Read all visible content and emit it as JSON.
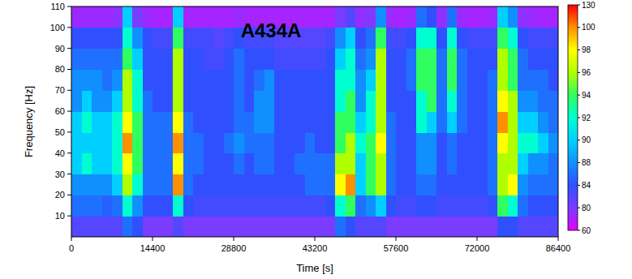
{
  "chart_data": {
    "type": "heatmap",
    "title": "A434A",
    "x_label": "Time [s]",
    "y_label": "Frequency [Hz]",
    "xlim": [
      0,
      86400
    ],
    "xticks": [
      0,
      14400,
      28800,
      43200,
      57600,
      72000,
      86400
    ],
    "ylim": [
      0,
      110
    ],
    "yticks": [
      10,
      20,
      30,
      40,
      50,
      60,
      70,
      80,
      90,
      100,
      110
    ],
    "x_bins": [
      0,
      1800,
      3600,
      5400,
      7200,
      9000,
      10800,
      12600,
      14400,
      16200,
      18000,
      19800,
      21600,
      23400,
      25200,
      27000,
      28800,
      30600,
      32400,
      34200,
      36000,
      37800,
      39600,
      41400,
      43200,
      45000,
      46800,
      48600,
      50400,
      52200,
      54000,
      55800,
      57600,
      59400,
      61200,
      63000,
      64800,
      66600,
      68400,
      70200,
      72000,
      73800,
      75600,
      77400,
      79200,
      81000,
      82800,
      84600,
      86400
    ],
    "y_bins": [
      0,
      10,
      20,
      30,
      40,
      50,
      60,
      70,
      80,
      90,
      100,
      110
    ],
    "cells": [
      [
        82,
        86,
        88,
        90,
        90,
        90,
        88,
        88,
        86,
        84,
        74
      ],
      [
        82,
        86,
        88,
        92,
        90,
        92,
        90,
        88,
        86,
        84,
        74
      ],
      [
        82,
        86,
        88,
        90,
        90,
        90,
        88,
        88,
        86,
        84,
        74
      ],
      [
        82,
        85,
        88,
        90,
        90,
        90,
        88,
        86,
        86,
        84,
        74
      ],
      [
        82,
        86,
        90,
        92,
        92,
        92,
        90,
        88,
        86,
        84,
        76
      ],
      [
        86,
        92,
        96,
        98,
        100,
        98,
        96,
        96,
        94,
        92,
        90
      ],
      [
        84,
        88,
        92,
        94,
        94,
        94,
        92,
        92,
        90,
        88,
        80
      ],
      [
        80,
        84,
        86,
        86,
        86,
        86,
        86,
        84,
        84,
        84,
        74
      ],
      [
        80,
        84,
        86,
        86,
        86,
        86,
        84,
        84,
        84,
        83,
        72
      ],
      [
        80,
        84,
        86,
        86,
        86,
        86,
        84,
        84,
        84,
        83,
        72
      ],
      [
        82,
        92,
        100,
        98,
        100,
        98,
        96,
        96,
        96,
        94,
        90
      ],
      [
        80,
        84,
        86,
        86,
        86,
        86,
        84,
        84,
        84,
        83,
        72
      ],
      [
        80,
        83,
        84,
        86,
        86,
        84,
        84,
        84,
        84,
        83,
        72
      ],
      [
        80,
        83,
        84,
        84,
        84,
        84,
        84,
        84,
        83,
        83,
        72
      ],
      [
        80,
        83,
        84,
        84,
        84,
        84,
        84,
        84,
        83,
        82,
        72
      ],
      [
        80,
        83,
        84,
        84,
        86,
        84,
        84,
        84,
        84,
        83,
        72
      ],
      [
        80,
        83,
        84,
        86,
        88,
        86,
        86,
        86,
        86,
        84,
        74
      ],
      [
        80,
        83,
        84,
        84,
        86,
        86,
        84,
        84,
        84,
        83,
        72
      ],
      [
        80,
        83,
        84,
        86,
        86,
        88,
        88,
        86,
        84,
        83,
        72
      ],
      [
        80,
        83,
        84,
        86,
        86,
        88,
        88,
        88,
        84,
        83,
        72
      ],
      [
        80,
        83,
        84,
        84,
        84,
        84,
        84,
        84,
        83,
        82,
        72
      ],
      [
        80,
        83,
        84,
        84,
        84,
        84,
        84,
        84,
        83,
        82,
        72
      ],
      [
        80,
        83,
        84,
        86,
        84,
        84,
        84,
        84,
        83,
        82,
        72
      ],
      [
        80,
        83,
        86,
        86,
        86,
        84,
        84,
        84,
        83,
        82,
        72
      ],
      [
        80,
        83,
        86,
        86,
        84,
        84,
        84,
        84,
        83,
        82,
        72
      ],
      [
        80,
        84,
        86,
        86,
        84,
        84,
        84,
        84,
        84,
        83,
        72
      ],
      [
        86,
        92,
        98,
        96,
        94,
        94,
        92,
        92,
        90,
        88,
        80
      ],
      [
        84,
        94,
        100,
        96,
        96,
        94,
        94,
        92,
        92,
        90,
        82
      ],
      [
        82,
        86,
        90,
        90,
        92,
        90,
        88,
        88,
        86,
        84,
        76
      ],
      [
        82,
        88,
        94,
        94,
        94,
        92,
        92,
        90,
        88,
        86,
        78
      ],
      [
        82,
        90,
        96,
        96,
        98,
        96,
        96,
        96,
        96,
        94,
        88
      ],
      [
        80,
        84,
        86,
        86,
        86,
        86,
        84,
        84,
        84,
        83,
        74
      ],
      [
        80,
        83,
        84,
        84,
        84,
        84,
        84,
        84,
        84,
        83,
        72
      ],
      [
        80,
        83,
        84,
        84,
        84,
        84,
        84,
        86,
        86,
        84,
        74
      ],
      [
        80,
        84,
        86,
        88,
        88,
        92,
        92,
        94,
        94,
        92,
        86
      ],
      [
        80,
        84,
        86,
        88,
        88,
        90,
        94,
        94,
        94,
        92,
        84
      ],
      [
        80,
        83,
        84,
        84,
        84,
        86,
        86,
        86,
        86,
        84,
        76
      ],
      [
        80,
        83,
        84,
        86,
        86,
        90,
        92,
        94,
        94,
        92,
        86
      ],
      [
        80,
        83,
        84,
        84,
        84,
        86,
        86,
        86,
        86,
        84,
        74
      ],
      [
        80,
        83,
        84,
        84,
        84,
        84,
        84,
        84,
        84,
        83,
        72
      ],
      [
        80,
        83,
        84,
        84,
        84,
        84,
        84,
        84,
        84,
        83,
        72
      ],
      [
        80,
        84,
        86,
        86,
        86,
        86,
        86,
        86,
        84,
        83,
        74
      ],
      [
        84,
        94,
        96,
        96,
        98,
        100,
        98,
        96,
        96,
        94,
        90
      ],
      [
        84,
        92,
        98,
        96,
        96,
        96,
        96,
        94,
        94,
        92,
        88
      ],
      [
        82,
        86,
        88,
        90,
        92,
        90,
        88,
        86,
        86,
        84,
        76
      ],
      [
        82,
        84,
        86,
        88,
        92,
        90,
        88,
        86,
        84,
        83,
        74
      ],
      [
        82,
        84,
        86,
        88,
        90,
        88,
        86,
        86,
        84,
        83,
        72
      ],
      [
        82,
        84,
        86,
        86,
        88,
        86,
        86,
        84,
        84,
        83,
        72
      ]
    ],
    "colorbar_range": [
      60,
      130
    ],
    "colorbar_ticks": [
      60,
      80,
      84,
      88,
      90,
      92,
      94,
      96,
      98,
      100,
      130
    ]
  }
}
